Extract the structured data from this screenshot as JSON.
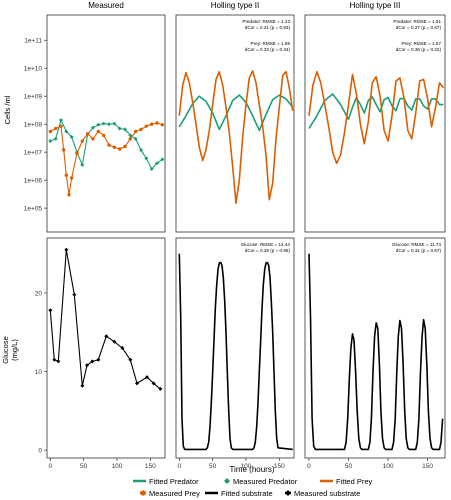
{
  "chart_data": [
    {
      "type": "line",
      "title": "Measured",
      "ylabel": "Cells /ml",
      "y_scale": "log",
      "ylim": [
        100000,
        1000000000000.0
      ],
      "yticks": [
        "1e+05",
        "1e+06",
        "1e+07",
        "1e+08",
        "1e+09",
        "1e+10",
        "1e+11"
      ],
      "xlim": [
        -5,
        172
      ],
      "grid": false,
      "series": [
        {
          "name": "Measured Predator",
          "marker": "diamond",
          "x": [
            0,
            8,
            16,
            24,
            32,
            40,
            48,
            56,
            64,
            72,
            80,
            88,
            96,
            104,
            112,
            120,
            128,
            136,
            144,
            152,
            160,
            168
          ],
          "y": [
            25000000.0,
            30000000.0,
            140000000.0,
            55000000.0,
            35000000.0,
            10000000.0,
            3500000.0,
            45000000.0,
            75000000.0,
            95000000.0,
            105000000.0,
            100000000.0,
            105000000.0,
            70000000.0,
            65000000.0,
            40000000.0,
            30000000.0,
            12000000.0,
            6000000.0,
            2500000.0,
            4000000.0,
            5500000.0
          ]
        },
        {
          "name": "Measured Prey",
          "marker": "circle",
          "x": [
            0,
            8,
            16,
            20,
            24,
            28,
            32,
            40,
            48,
            56,
            64,
            72,
            80,
            88,
            96,
            104,
            112,
            120,
            128,
            136,
            144,
            152,
            160,
            168
          ],
          "y": [
            55000000.0,
            70000000.0,
            85000000.0,
            12000000.0,
            1500000.0,
            300000.0,
            1200000.0,
            9000000.0,
            25000000.0,
            45000000.0,
            30000000.0,
            55000000.0,
            40000000.0,
            18000000.0,
            15000000.0,
            13000000.0,
            16000000.0,
            30000000.0,
            55000000.0,
            65000000.0,
            85000000.0,
            100000000.0,
            110000000.0,
            95000000.0
          ]
        }
      ]
    },
    {
      "type": "line",
      "title": "Holling type II",
      "y_scale": "log",
      "ylim": [
        100000,
        1000000000000.0
      ],
      "xlim": [
        -5,
        172
      ],
      "annotations": [
        "Predator: RMSE = 1.23",
        "dCor = 0.21 (p = 0.93)",
        "Prey: RMSE = 1.85",
        "dCor = 0.33 (p = 0.34)"
      ],
      "series": [
        {
          "name": "Fitted Predator",
          "x": [
            0,
            10,
            20,
            30,
            40,
            50,
            60,
            70,
            80,
            90,
            100,
            110,
            120,
            130,
            140,
            150,
            160,
            170
          ],
          "y": [
            80000000.0,
            200000000.0,
            550000000.0,
            1000000000.0,
            650000000.0,
            250000000.0,
            65000000.0,
            200000000.0,
            700000000.0,
            1100000000.0,
            600000000.0,
            200000000.0,
            60000000.0,
            220000000.0,
            750000000.0,
            1100000000.0,
            800000000.0,
            400000000.0
          ]
        },
        {
          "name": "Fitted Prey",
          "x": [
            0,
            5,
            10,
            15,
            20,
            25,
            30,
            35,
            40,
            45,
            50,
            55,
            60,
            65,
            70,
            75,
            80,
            85,
            90,
            95,
            100,
            105,
            110,
            115,
            120,
            125,
            130,
            135,
            140,
            145,
            150,
            155,
            160,
            165,
            170
          ],
          "y": [
            200000000.0,
            2500000000.0,
            7000000000.0,
            3000000000.0,
            600000000.0,
            100000000.0,
            15000000.0,
            5000000.0,
            12000000.0,
            60000000.0,
            500000000.0,
            4000000000.0,
            7500000000.0,
            2500000000.0,
            400000000.0,
            50000000.0,
            3000000.0,
            150000.0,
            1000000.0,
            35000000.0,
            500000000.0,
            4500000000.0,
            8000000000.0,
            3000000000.0,
            500000000.0,
            80000000.0,
            8000000.0,
            200000.0,
            800000.0,
            30000000.0,
            400000000.0,
            5500000000.0,
            7500000000.0,
            2000000000.0,
            300000000.0
          ]
        }
      ]
    },
    {
      "type": "line",
      "title": "Holling type III",
      "y_scale": "log",
      "ylim": [
        100000,
        1000000000000.0
      ],
      "xlim": [
        -5,
        172
      ],
      "annotations": [
        "Predator: RMSE = 1.51",
        "dCor = 0.27 (p = 0.67)",
        "Prey: RMSE = 1.57",
        "dCor = 0.36 (p = 0.22)"
      ],
      "series": [
        {
          "name": "Fitted Predator",
          "x": [
            0,
            10,
            20,
            30,
            40,
            50,
            55,
            60,
            65,
            70,
            75,
            80,
            85,
            90,
            95,
            100,
            105,
            110,
            115,
            120,
            125,
            130,
            135,
            140,
            145,
            150,
            155,
            160,
            165,
            170
          ],
          "y": [
            70000000.0,
            200000000.0,
            700000000.0,
            1200000000.0,
            500000000.0,
            150000000.0,
            400000000.0,
            900000000.0,
            500000000.0,
            250000000.0,
            700000000.0,
            950000000.0,
            500000000.0,
            280000000.0,
            750000000.0,
            900000000.0,
            450000000.0,
            300000000.0,
            800000000.0,
            850000000.0,
            450000000.0,
            320000000.0,
            800000000.0,
            800000000.0,
            450000000.0,
            350000000.0,
            800000000.0,
            800000000.0,
            500000000.0,
            500000000.0
          ]
        },
        {
          "name": "Fitted Prey",
          "x": [
            0,
            5,
            10,
            15,
            20,
            25,
            30,
            35,
            40,
            45,
            50,
            55,
            60,
            65,
            70,
            75,
            80,
            85,
            90,
            95,
            100,
            105,
            110,
            115,
            120,
            125,
            130,
            135,
            140,
            145,
            150,
            155,
            160,
            165,
            170
          ],
          "y": [
            200000000.0,
            2500000000.0,
            7500000000.0,
            3000000000.0,
            500000000.0,
            80000000.0,
            10000000.0,
            4000000.0,
            8000000.0,
            50000000.0,
            500000000.0,
            6000000000.0,
            1200000000.0,
            100000000.0,
            20000000.0,
            120000000.0,
            3000000000.0,
            5000000000.0,
            1000000000.0,
            60000000.0,
            25000000.0,
            200000000.0,
            3500000000.0,
            4500000000.0,
            900000000.0,
            60000000.0,
            30000000.0,
            250000000.0,
            3500000000.0,
            4000000000.0,
            800000000.0,
            80000000.0,
            400000000.0,
            3000000000.0,
            2000000000.0
          ]
        }
      ]
    },
    {
      "type": "line",
      "title": "",
      "ylabel": "Glucose\n(mg/L)",
      "ylim": [
        -1,
        27
      ],
      "yticks": [
        0,
        10,
        20
      ],
      "xlim": [
        -5,
        172
      ],
      "xticks": [
        0,
        50,
        100,
        150
      ],
      "series": [
        {
          "name": "Measured substrate",
          "marker": "diamond",
          "x": [
            0,
            6,
            12,
            24,
            36,
            48,
            55,
            63,
            72,
            84,
            96,
            108,
            120,
            130,
            145,
            155,
            165
          ],
          "y": [
            17.8,
            11.5,
            11.3,
            25.5,
            19.8,
            8.2,
            10.8,
            11.3,
            11.5,
            14.5,
            13.8,
            13.0,
            11.5,
            8.5,
            9.3,
            8.5,
            7.8
          ]
        }
      ]
    },
    {
      "type": "line",
      "title": "",
      "ylim": [
        -1,
        27
      ],
      "xlim": [
        -5,
        172
      ],
      "xticks": [
        0,
        50,
        100,
        150
      ],
      "xlabel": "Time (hours)",
      "annotations": [
        "Glucose: RMSE = 12.44",
        "dCor = 0.28 (p = 0.86)"
      ],
      "series": [
        {
          "name": "Fitted substrate",
          "x": [
            0,
            2,
            4,
            6,
            8,
            40,
            42,
            44,
            46,
            48,
            50,
            52,
            54,
            56,
            58,
            60,
            62,
            64,
            66,
            68,
            70,
            72,
            74,
            76,
            78,
            80,
            110,
            112,
            114,
            116,
            118,
            120,
            122,
            124,
            126,
            128,
            130,
            132,
            134,
            136,
            138,
            140,
            142,
            144,
            146,
            148,
            170
          ],
          "y": [
            25,
            17,
            4,
            0.5,
            0.1,
            0.1,
            0.3,
            1,
            3,
            6,
            10,
            14,
            18,
            21,
            23,
            23.8,
            23.9,
            23.5,
            22,
            19,
            15,
            10,
            5,
            1.5,
            0.3,
            0.1,
            0.1,
            0.3,
            1,
            3,
            6,
            10,
            14,
            18,
            21,
            23,
            23.8,
            23.9,
            23.5,
            22,
            19,
            15,
            10,
            5,
            1.5,
            0.3,
            0.1
          ]
        }
      ]
    },
    {
      "type": "line",
      "title": "",
      "ylim": [
        -1,
        27
      ],
      "xlim": [
        -5,
        172
      ],
      "xticks": [
        0,
        50,
        100,
        150
      ],
      "annotations": [
        "Glucose: RMSE = 11.74",
        "dCor = 0.31 (p = 0.67)"
      ],
      "series": [
        {
          "name": "Fitted substrate",
          "x": [
            0,
            2,
            4,
            6,
            8,
            45,
            47,
            49,
            51,
            53,
            55,
            57,
            59,
            61,
            63,
            65,
            67,
            75,
            77,
            79,
            81,
            83,
            85,
            87,
            89,
            91,
            93,
            95,
            97,
            105,
            107,
            109,
            111,
            113,
            115,
            117,
            119,
            121,
            123,
            125,
            127,
            135,
            137,
            139,
            141,
            143,
            145,
            147,
            149,
            151,
            153,
            155,
            157,
            165,
            167,
            169
          ],
          "y": [
            25,
            17,
            4,
            0.5,
            0.1,
            0.1,
            1,
            4,
            9,
            13,
            14.8,
            14,
            10,
            5,
            1.5,
            0.3,
            0.1,
            0.1,
            1,
            4,
            10,
            14.5,
            16.2,
            15.5,
            11,
            5,
            1.5,
            0.3,
            0.1,
            0.1,
            1,
            4,
            10,
            14.5,
            16.5,
            15.5,
            11,
            5,
            1.5,
            0.3,
            0.1,
            0.1,
            1,
            4,
            10,
            14.5,
            16.6,
            15.5,
            11,
            5,
            1.5,
            0.3,
            0.1,
            0.1,
            1,
            4
          ]
        }
      ]
    }
  ],
  "axis_title_x": "Time (hours)",
  "legend": {
    "row1": [
      "Fitted Predator",
      "Measured Predator",
      "Fitted Prey"
    ],
    "row2": [
      "Measured Prey",
      "Fitted substrate",
      "Measured substrate"
    ]
  },
  "colors": {
    "predator": "#1b9e77",
    "prey": "#d95f02",
    "substrate": "#000000",
    "frame": "#333333"
  }
}
